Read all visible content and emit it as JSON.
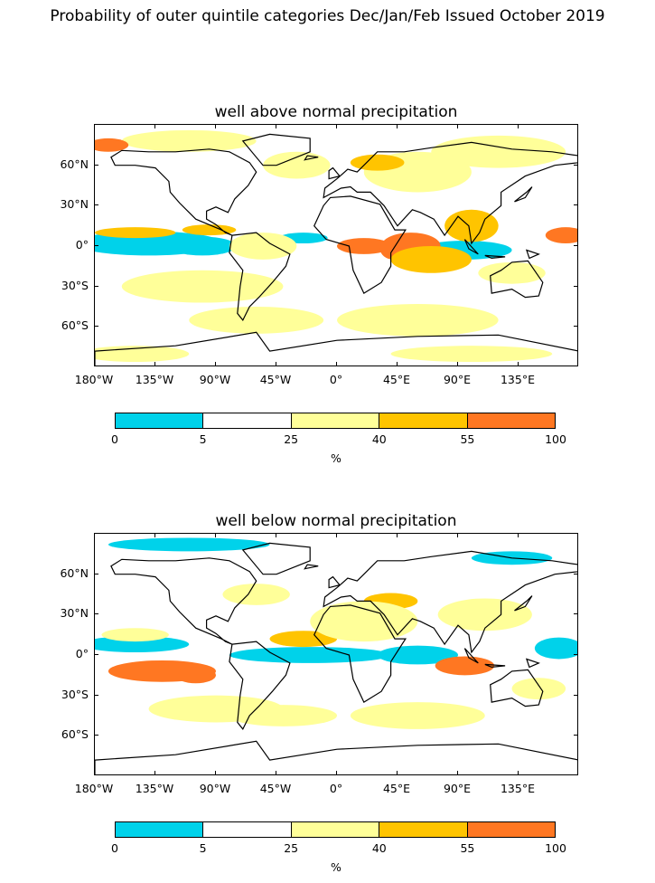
{
  "figure": {
    "title": "Probability of outer quintile categories Dec/Jan/Feb Issued October 2019"
  },
  "panels": [
    {
      "title": "well above normal precipitation"
    },
    {
      "title": "well below normal precipitation"
    }
  ],
  "axes": {
    "lat_labels": [
      "60°N",
      "30°N",
      "0°",
      "30°S",
      "60°S"
    ],
    "lat_values": [
      60,
      30,
      0,
      -30,
      -60
    ],
    "lon_labels": [
      "180°W",
      "135°W",
      "90°W",
      "45°W",
      "0°",
      "45°E",
      "90°E",
      "135°E"
    ],
    "lon_values": [
      -180,
      -135,
      -90,
      -45,
      0,
      45,
      90,
      135
    ]
  },
  "colorbar": {
    "tick_labels": [
      "0",
      "5",
      "25",
      "40",
      "55",
      "100"
    ],
    "unit": "%",
    "colors": [
      "#00d2ea",
      "#ffffff",
      "#ffff99",
      "#ffc400",
      "#ff7722"
    ]
  },
  "chart_data": {
    "type": "heatmap",
    "projection": "plate-carree",
    "extent": {
      "lon": [
        -180,
        180
      ],
      "lat": [
        -90,
        90
      ]
    },
    "grid": false,
    "blobs": [
      [
        {
          "lon": -140,
          "lat": 2,
          "rx": 55,
          "ry": 9,
          "c": 0
        },
        {
          "lon": -100,
          "lat": 0,
          "rx": 25,
          "ry": 7,
          "c": 0
        },
        {
          "lon": -25,
          "lat": 6,
          "rx": 18,
          "ry": 4,
          "c": 0
        },
        {
          "lon": 95,
          "lat": -3,
          "rx": 35,
          "ry": 7,
          "c": 0
        },
        {
          "lon": -150,
          "lat": 10,
          "rx": 30,
          "ry": 4,
          "c": 3
        },
        {
          "lon": -95,
          "lat": 12,
          "rx": 20,
          "ry": 4,
          "c": 3
        },
        {
          "lon": -55,
          "lat": 0,
          "rx": 25,
          "ry": 10,
          "c": 2
        },
        {
          "lon": 20,
          "lat": 0,
          "rx": 20,
          "ry": 6,
          "c": 4
        },
        {
          "lon": 55,
          "lat": 0,
          "rx": 22,
          "ry": 10,
          "c": 4
        },
        {
          "lon": 42,
          "lat": -2,
          "rx": 10,
          "ry": 8,
          "c": 4
        },
        {
          "lon": 70,
          "lat": -10,
          "rx": 30,
          "ry": 10,
          "c": 3
        },
        {
          "lon": 100,
          "lat": 15,
          "rx": 20,
          "ry": 12,
          "c": 3
        },
        {
          "lon": 170,
          "lat": 8,
          "rx": 15,
          "ry": 6,
          "c": 4
        },
        {
          "lon": 120,
          "lat": 70,
          "rx": 50,
          "ry": 12,
          "c": 2
        },
        {
          "lon": 60,
          "lat": 55,
          "rx": 40,
          "ry": 15,
          "c": 2
        },
        {
          "lon": 30,
          "lat": 62,
          "rx": 20,
          "ry": 6,
          "c": 3
        },
        {
          "lon": -110,
          "lat": 78,
          "rx": 50,
          "ry": 8,
          "c": 2
        },
        {
          "lon": -30,
          "lat": 60,
          "rx": 25,
          "ry": 10,
          "c": 2
        },
        {
          "lon": -60,
          "lat": -55,
          "rx": 50,
          "ry": 10,
          "c": 2
        },
        {
          "lon": 60,
          "lat": -55,
          "rx": 60,
          "ry": 12,
          "c": 2
        },
        {
          "lon": -100,
          "lat": -30,
          "rx": 60,
          "ry": 12,
          "c": 2
        },
        {
          "lon": -150,
          "lat": -80,
          "rx": 40,
          "ry": 6,
          "c": 2
        },
        {
          "lon": 100,
          "lat": -80,
          "rx": 60,
          "ry": 6,
          "c": 2
        },
        {
          "lon": -170,
          "lat": 75,
          "rx": 15,
          "ry": 5,
          "c": 4
        },
        {
          "lon": 130,
          "lat": -20,
          "rx": 25,
          "ry": 8,
          "c": 2
        }
      ],
      [
        {
          "lon": -150,
          "lat": 8,
          "rx": 40,
          "ry": 6,
          "c": 0
        },
        {
          "lon": -20,
          "lat": 0,
          "rx": 60,
          "ry": 6,
          "c": 0
        },
        {
          "lon": 60,
          "lat": 0,
          "rx": 30,
          "ry": 7,
          "c": 0
        },
        {
          "lon": 165,
          "lat": 5,
          "rx": 18,
          "ry": 8,
          "c": 0
        },
        {
          "lon": -110,
          "lat": 82,
          "rx": 60,
          "ry": 5,
          "c": 0
        },
        {
          "lon": 130,
          "lat": 72,
          "rx": 30,
          "ry": 5,
          "c": 0
        },
        {
          "lon": -130,
          "lat": -12,
          "rx": 40,
          "ry": 8,
          "c": 4
        },
        {
          "lon": -105,
          "lat": -15,
          "rx": 15,
          "ry": 6,
          "c": 4
        },
        {
          "lon": 95,
          "lat": -8,
          "rx": 22,
          "ry": 7,
          "c": 4
        },
        {
          "lon": -25,
          "lat": 12,
          "rx": 25,
          "ry": 6,
          "c": 3
        },
        {
          "lon": 40,
          "lat": 40,
          "rx": 20,
          "ry": 6,
          "c": 3
        },
        {
          "lon": -150,
          "lat": 15,
          "rx": 25,
          "ry": 5,
          "c": 2
        },
        {
          "lon": 20,
          "lat": 25,
          "rx": 40,
          "ry": 15,
          "c": 2
        },
        {
          "lon": 110,
          "lat": 30,
          "rx": 35,
          "ry": 12,
          "c": 2
        },
        {
          "lon": -40,
          "lat": -45,
          "rx": 40,
          "ry": 8,
          "c": 2
        },
        {
          "lon": 60,
          "lat": -45,
          "rx": 50,
          "ry": 10,
          "c": 2
        },
        {
          "lon": -90,
          "lat": -40,
          "rx": 50,
          "ry": 10,
          "c": 2
        },
        {
          "lon": -60,
          "lat": 45,
          "rx": 25,
          "ry": 8,
          "c": 2
        },
        {
          "lon": 150,
          "lat": -25,
          "rx": 20,
          "ry": 8,
          "c": 2
        }
      ]
    ]
  }
}
